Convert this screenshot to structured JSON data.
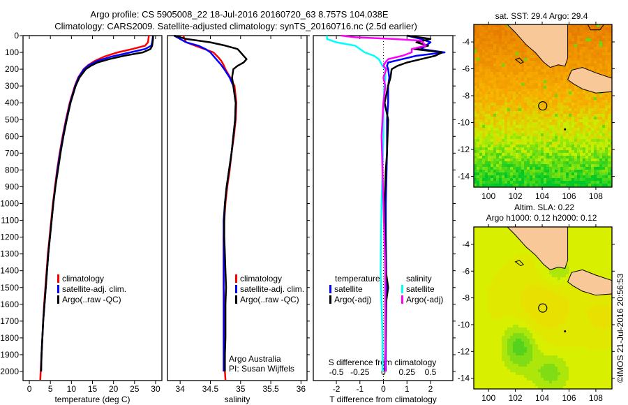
{
  "title_line1": "Argo profile: CS 5905008_22 18-Jul-2016 20160720_63 8.757S 104.038E",
  "title_line2": "Climatology: CARS2009. Satellite-adjusted climatology: synTS_20160716.nc (2.5d earlier)",
  "credit": "©IMOS 21-Jul-2016 20:56:53",
  "attribution": [
    "Argo Australia",
    "PI: Susan Wijffels"
  ],
  "colors": {
    "climatology": "#ff0000",
    "satellite": "#0000ff",
    "argo": "#000000",
    "s_satellite": "#00ffff",
    "s_argo": "#ff00ff",
    "land": "#f8c898"
  },
  "chart_data": [
    {
      "type": "line",
      "name": "temperature",
      "xlabel": "temperature (deg C)",
      "ylabel": "",
      "xlim": [
        -2,
        31.5
      ],
      "ylim": [
        2060,
        0
      ],
      "xticks": [
        0,
        5,
        10,
        15,
        20,
        25,
        30
      ],
      "yticks": [
        0,
        100,
        200,
        300,
        400,
        500,
        600,
        700,
        800,
        900,
        1000,
        1100,
        1200,
        1300,
        1400,
        1500,
        1600,
        1700,
        1800,
        1900,
        2000
      ],
      "legend": [
        "climatology",
        "satellite-adj. clim.",
        "Argo(..raw -QC)"
      ],
      "series": [
        {
          "name": "climatology",
          "color": "#ff0000",
          "depth": [
            0,
            40,
            60,
            80,
            100,
            125,
            150,
            175,
            200,
            250,
            300,
            400,
            500,
            600,
            700,
            800,
            900,
            1000,
            1100,
            1200,
            1300,
            1400,
            1500,
            1600,
            1700,
            1800,
            1900,
            2000,
            2050
          ],
          "values": [
            28.4,
            28.2,
            27.5,
            24.5,
            21.0,
            17.8,
            15.6,
            14.0,
            12.9,
            11.6,
            10.8,
            9.6,
            8.7,
            7.9,
            7.2,
            6.6,
            6.1,
            5.6,
            5.2,
            4.8,
            4.4,
            4.1,
            3.8,
            3.5,
            3.3,
            3.1,
            2.9,
            2.7,
            2.6
          ]
        },
        {
          "name": "satellite-adj. clim.",
          "color": "#0000ff",
          "depth": [
            0,
            40,
            60,
            80,
            100,
            125,
            150,
            175,
            200,
            250,
            300,
            400,
            500,
            600,
            700,
            800,
            900,
            1000,
            1100,
            1200,
            1300,
            1400,
            1500,
            1600,
            1700,
            1800,
            1900,
            2000
          ],
          "values": [
            29.4,
            29.2,
            29.0,
            27.5,
            24.0,
            19.5,
            16.2,
            14.2,
            13.0,
            11.7,
            10.9,
            9.7,
            8.8,
            8.0,
            7.3,
            6.7,
            6.2,
            5.7,
            5.3,
            4.9,
            4.5,
            4.2,
            3.9,
            3.6,
            3.3,
            3.1,
            2.9,
            2.8
          ]
        },
        {
          "name": "Argo(..raw -QC)",
          "color": "#000000",
          "depth": [
            0,
            20,
            40,
            60,
            80,
            100,
            120,
            140,
            160,
            180,
            200,
            250,
            300,
            400,
            500,
            600,
            700,
            800,
            900,
            1000,
            1100,
            1200,
            1300,
            1400,
            1500,
            1600,
            1700,
            1800,
            1900,
            2000
          ],
          "values": [
            29.4,
            29.4,
            29.3,
            29.2,
            28.8,
            27.0,
            22.5,
            19.0,
            16.2,
            14.6,
            13.4,
            11.9,
            11.0,
            9.8,
            8.9,
            8.1,
            7.4,
            6.8,
            6.2,
            5.7,
            5.3,
            4.9,
            4.5,
            4.2,
            3.9,
            3.6,
            3.3,
            3.1,
            2.9,
            2.8
          ]
        }
      ]
    },
    {
      "type": "line",
      "name": "salinity",
      "xlabel": "salinity",
      "xlim": [
        33.8,
        36.1
      ],
      "ylim": [
        2060,
        0
      ],
      "xticks": [
        34,
        34.5,
        35,
        35.5,
        36
      ],
      "legend": [
        "climatology",
        "satellite-adj. clim.",
        "Argo(..raw -QC)"
      ],
      "series": [
        {
          "name": "climatology",
          "color": "#ff0000",
          "depth": [
            0,
            40,
            60,
            80,
            100,
            125,
            150,
            175,
            200,
            250,
            300,
            400,
            500,
            600,
            700,
            800,
            900,
            1000,
            1100,
            1200,
            1300,
            1400,
            1500,
            1600,
            1700,
            1800,
            1900,
            2000,
            2050
          ],
          "values": [
            34.05,
            34.1,
            34.25,
            34.4,
            34.55,
            34.62,
            34.68,
            34.72,
            34.75,
            34.83,
            34.9,
            34.93,
            34.92,
            34.89,
            34.85,
            34.82,
            34.78,
            34.75,
            34.73,
            34.72,
            34.72,
            34.72,
            34.72,
            34.73,
            34.73,
            34.73,
            34.74,
            34.74,
            34.75
          ]
        },
        {
          "name": "satellite-adj. clim.",
          "color": "#0000ff",
          "depth": [
            0,
            20,
            40,
            60,
            80,
            100,
            125,
            150,
            175,
            200,
            250,
            300,
            400,
            500,
            600,
            700,
            800,
            900,
            1000,
            1100,
            1200,
            1300,
            1400,
            1500,
            1600,
            1700,
            1800,
            1900,
            2000
          ],
          "values": [
            33.9,
            34.0,
            34.1,
            34.3,
            34.42,
            34.5,
            34.56,
            34.62,
            34.68,
            34.73,
            34.82,
            34.88,
            34.92,
            34.91,
            34.88,
            34.85,
            34.81,
            34.77,
            34.74,
            34.72,
            34.72,
            34.72,
            34.72,
            34.72,
            34.72,
            34.72,
            34.72,
            34.72,
            34.72
          ]
        },
        {
          "name": "Argo(..raw -QC)",
          "color": "#000000",
          "depth": [
            0,
            20,
            40,
            60,
            80,
            100,
            120,
            140,
            160,
            180,
            200,
            250,
            300,
            400,
            500,
            600,
            700,
            800,
            900,
            1000,
            1100,
            1200,
            1300,
            1400,
            1500,
            1600,
            1700,
            1800,
            1900,
            2000
          ],
          "values": [
            33.9,
            34.1,
            34.5,
            34.75,
            34.95,
            35.0,
            35.05,
            35.1,
            35.05,
            34.95,
            34.88,
            34.86,
            34.88,
            34.92,
            34.91,
            34.88,
            34.85,
            34.81,
            34.77,
            34.74,
            34.73,
            34.73,
            34.74,
            34.75,
            34.76,
            34.75,
            34.75,
            34.75,
            34.74,
            34.74
          ]
        }
      ]
    },
    {
      "type": "line",
      "name": "difference",
      "xlabel": "T difference from climatology",
      "x2label": "S difference from climatology",
      "xlim": [
        -3,
        3
      ],
      "ylim": [
        2060,
        0
      ],
      "xticks": [
        -2,
        -1,
        0,
        1,
        2
      ],
      "x2ticks": [
        "-0.5",
        "-0.25",
        "0",
        "0.25",
        "0.5"
      ],
      "legend": {
        "temperature_heading": "temperature",
        "salinity_heading": "salinity",
        "t_satellite": "satellite",
        "t_argo": "Argo(-adj)",
        "s_satellite": "satellite",
        "s_argo": "Argo(-adj)"
      },
      "series": [
        {
          "name": "T satellite",
          "color": "#0000ff",
          "depth": [
            0,
            20,
            40,
            60,
            80,
            100,
            120,
            140,
            160,
            180,
            200,
            250,
            300,
            400,
            500,
            700,
            1000,
            1200,
            1400,
            1600,
            1800,
            2000
          ],
          "values": [
            1.0,
            1.6,
            2.0,
            1.8,
            1.6,
            2.6,
            1.4,
            0.8,
            0.2,
            0.15,
            0.2,
            0.25,
            0.2,
            0.2,
            0.15,
            0.15,
            0.1,
            0.1,
            0.12,
            0.12,
            0.1,
            0.1
          ]
        },
        {
          "name": "T Argo(-adj)",
          "color": "#000000",
          "depth": [
            0,
            20,
            40,
            60,
            80,
            100,
            120,
            140,
            160,
            180,
            200,
            250,
            300,
            400,
            500,
            700,
            800,
            1000,
            1200,
            1400,
            1500,
            1600,
            1800,
            2000
          ],
          "values": [
            1.0,
            2.0,
            1.4,
            1.9,
            1.3,
            2.5,
            2.2,
            1.6,
            1.0,
            0.6,
            0.35,
            0.3,
            0.2,
            0.05,
            0.2,
            0.15,
            0.1,
            0.05,
            0.08,
            0.1,
            0.2,
            0.1,
            0.1,
            0.05
          ]
        },
        {
          "name": "S satellite",
          "color": "#00ffff",
          "depth": [
            0,
            20,
            40,
            60,
            80,
            100,
            120,
            140,
            160,
            180,
            200,
            250,
            300,
            400,
            600,
            1000,
            1400,
            1600,
            1800,
            2000
          ],
          "values": [
            -0.6,
            -0.6,
            -0.5,
            -0.3,
            -0.25,
            -0.2,
            -0.1,
            -0.05,
            -0.03,
            -0.01,
            0.02,
            0.02,
            0.01,
            0.0,
            0.0,
            -0.02,
            -0.03,
            -0.02,
            -0.01,
            -0.01
          ]
        },
        {
          "name": "S Argo(-adj)",
          "color": "#ff00ff",
          "depth": [
            0,
            10,
            20,
            30,
            60,
            80,
            100,
            120,
            140,
            160,
            180,
            200,
            250,
            300,
            400,
            600,
            1000,
            1400,
            1600,
            1800,
            2000
          ],
          "values": [
            -0.45,
            -0.3,
            0.1,
            0.4,
            0.45,
            0.3,
            0.3,
            0.2,
            0.05,
            0.02,
            0.0,
            0.03,
            0.0,
            0.02,
            0.0,
            -0.02,
            0.0,
            0.02,
            0.02,
            0.02,
            0.02
          ]
        }
      ]
    },
    {
      "type": "heatmap",
      "name": "sst-map",
      "title": "sat. SST: 29.4 Argo: 29.4",
      "xlim": [
        98.9,
        109.2
      ],
      "ylim": [
        -14.8,
        -2.7
      ],
      "xticks": [
        100,
        102,
        104,
        106,
        108
      ],
      "yticks": [
        -4,
        -6,
        -8,
        -10,
        -12,
        -14
      ],
      "argo_position": [
        104.038,
        -8.757
      ]
    },
    {
      "type": "heatmap",
      "name": "sla-map",
      "title_line1": "Altim. SLA: 0.22",
      "title_line2": "Argo h1000: 0.12 h2000: 0.12",
      "xlim": [
        98.9,
        109.2
      ],
      "ylim": [
        -14.8,
        -2.7
      ],
      "xticks": [
        100,
        102,
        104,
        106,
        108
      ],
      "yticks": [
        -4,
        -6,
        -8,
        -10,
        -12,
        -14
      ],
      "argo_position": [
        104.038,
        -8.757
      ]
    }
  ]
}
